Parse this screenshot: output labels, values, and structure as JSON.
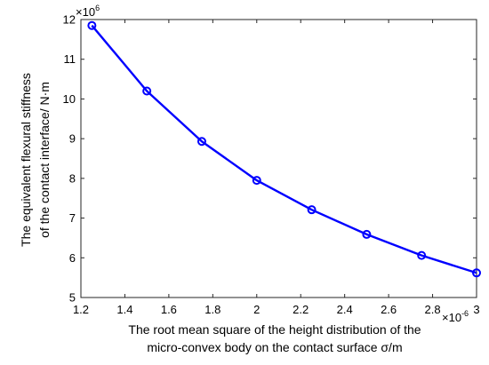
{
  "chart_data": {
    "type": "line",
    "title": "",
    "xlabel_line1": "The root mean square of the height distribution of the",
    "xlabel_line2": "micro-convex body on the contact surface σ/m",
    "ylabel_line1": "The equivalent flexural stiffness",
    "ylabel_line2": "of the contact interface/ N·m",
    "x_exponent_base": "×10",
    "x_exponent_power": "-6",
    "y_exponent_base": "×10",
    "y_exponent_power": "6",
    "xlim": [
      1.2,
      3.0
    ],
    "ylim": [
      5,
      12
    ],
    "x_ticks": [
      1.2,
      1.4,
      1.6,
      1.8,
      2.0,
      2.2,
      2.4,
      2.6,
      2.8,
      3.0
    ],
    "x_tick_labels": [
      "1.2",
      "1.4",
      "1.6",
      "1.8",
      "2",
      "2.2",
      "2.4",
      "2.6",
      "2.8",
      "3"
    ],
    "y_ticks": [
      5,
      6,
      7,
      8,
      9,
      10,
      11,
      12
    ],
    "y_tick_labels": [
      "5",
      "6",
      "7",
      "8",
      "9",
      "10",
      "11",
      "12"
    ],
    "grid": false,
    "series": [
      {
        "color": "#0000ff",
        "marker": "circle",
        "x": [
          1.25,
          1.5,
          1.75,
          2.0,
          2.25,
          2.5,
          2.75,
          3.0
        ],
        "y": [
          11.85,
          10.2,
          8.93,
          7.95,
          7.21,
          6.59,
          6.06,
          5.62
        ]
      }
    ]
  }
}
